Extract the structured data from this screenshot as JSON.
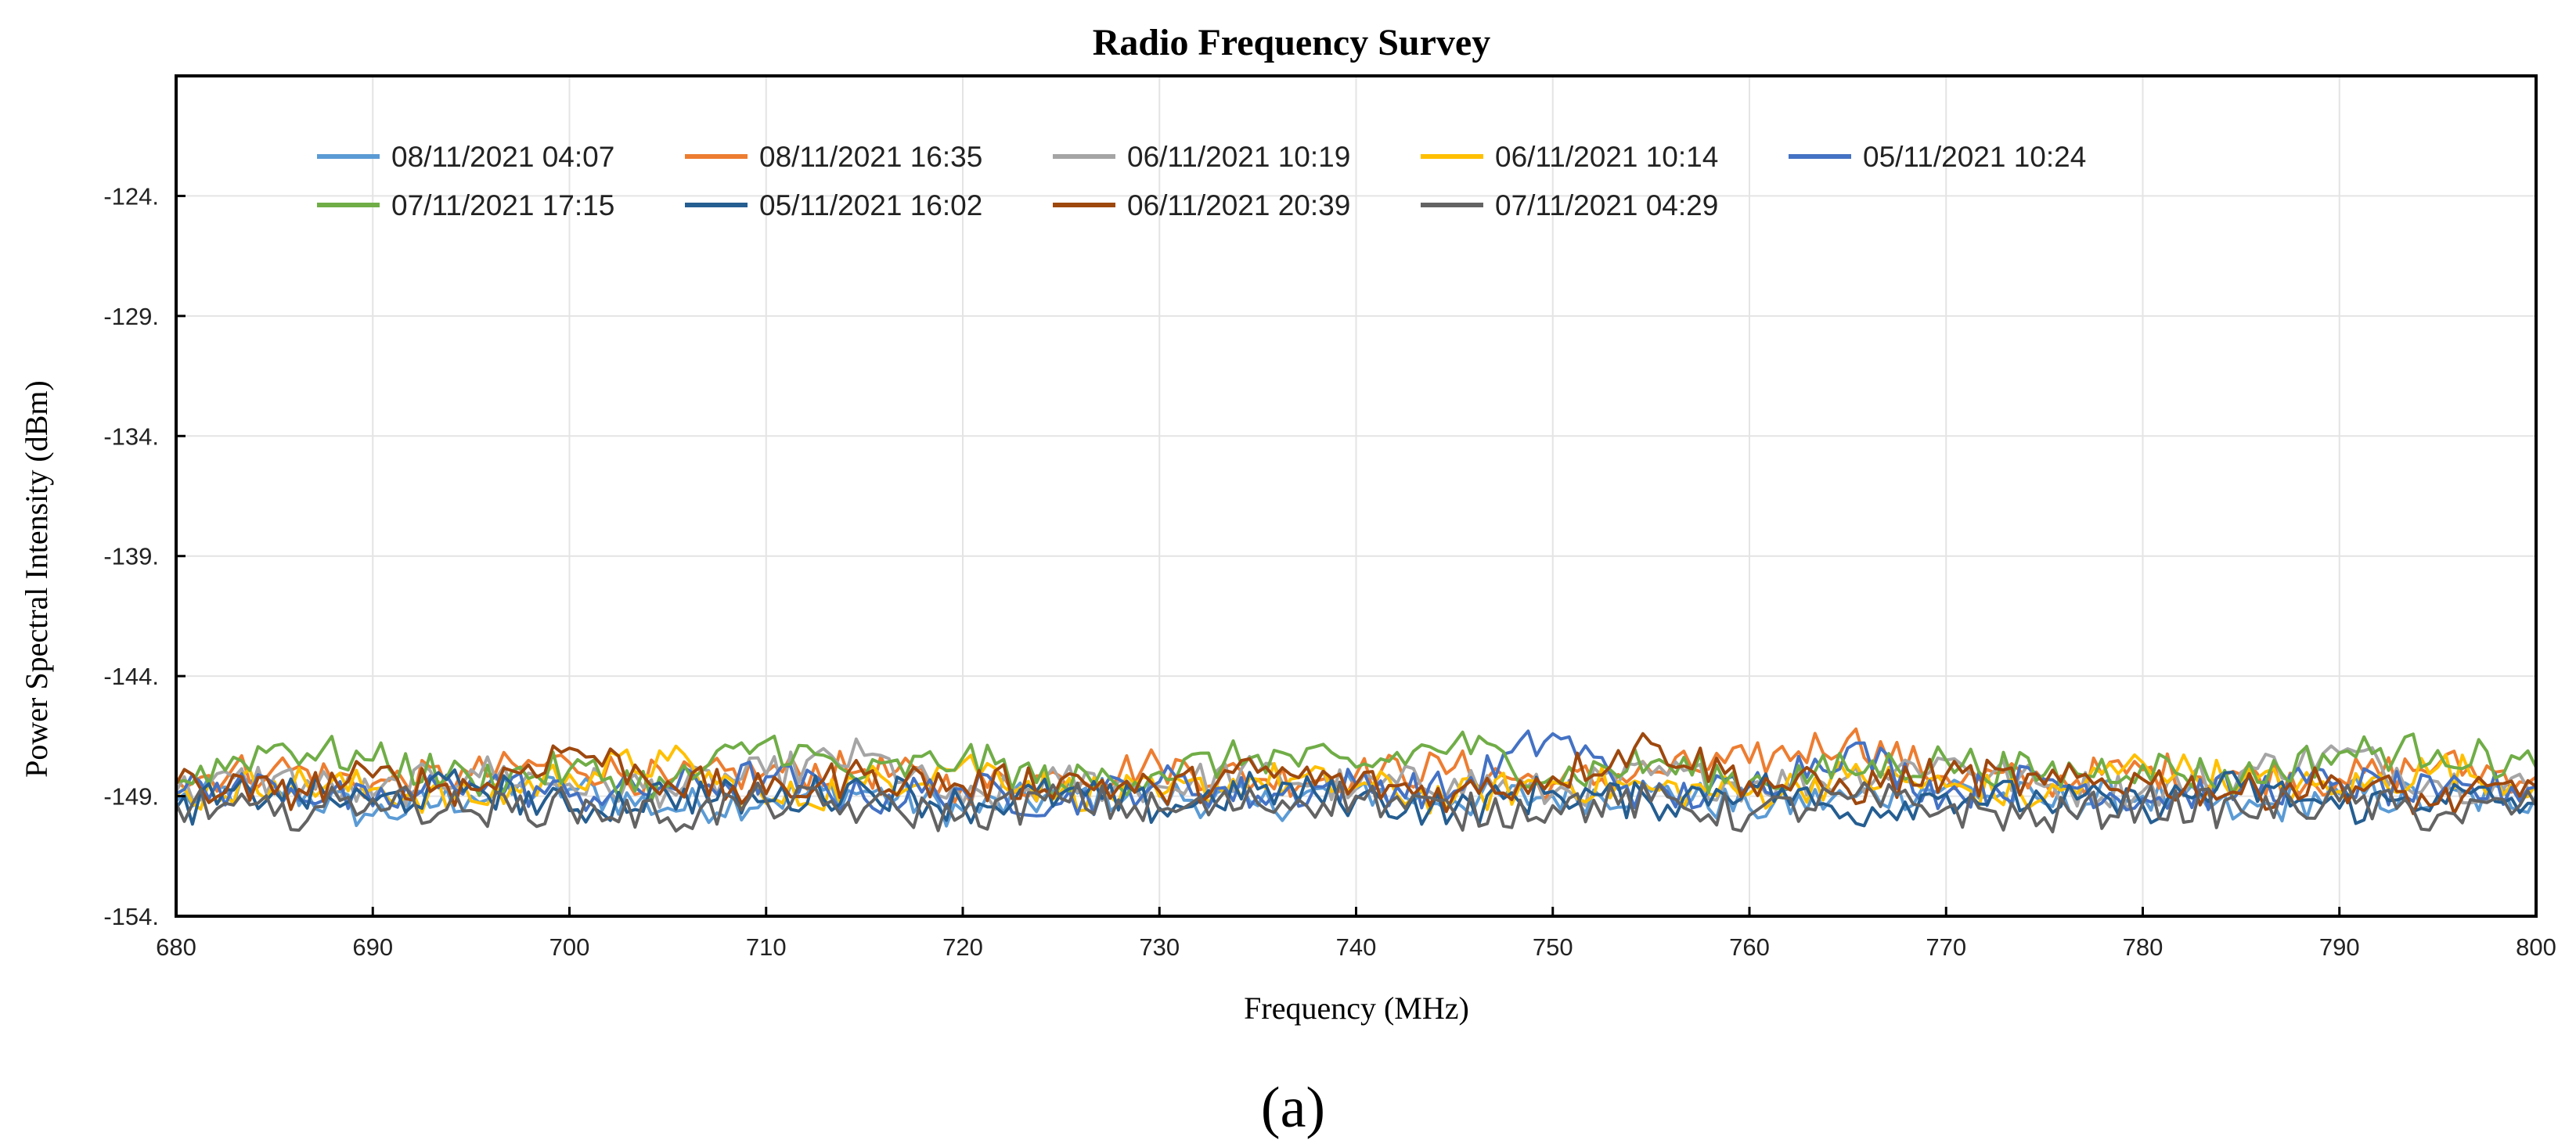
{
  "panel_label": "(a)",
  "chart_data": {
    "type": "line",
    "title": "Radio Frequency Survey",
    "xlabel": "Frequency (MHz)",
    "ylabel": "Power Spectral Intensity (dBm)",
    "xlim": [
      680,
      800
    ],
    "ylim": [
      -154,
      -119
    ],
    "x_ticks": [
      680,
      690,
      700,
      710,
      720,
      730,
      740,
      750,
      760,
      770,
      780,
      790,
      800
    ],
    "x_tick_labels": [
      "680",
      "690",
      "700",
      "710",
      "720",
      "730",
      "740",
      "750",
      "760",
      "770",
      "780",
      "790",
      "800"
    ],
    "y_ticks": [
      -154,
      -149,
      -144,
      -139,
      -134,
      -129,
      -124
    ],
    "y_tick_labels": [
      "-154.",
      "-149.",
      "-144.",
      "-139.",
      "-134.",
      "-129.",
      "-124."
    ],
    "grid": true,
    "legend_position": "top",
    "x": [
      680,
      685,
      690,
      695,
      700,
      705,
      710,
      715,
      720,
      725,
      730,
      735,
      740,
      745,
      750,
      755,
      760,
      765,
      770,
      775,
      780,
      785,
      790,
      795,
      800
    ],
    "series": [
      {
        "name": "08/11/2021 04:07",
        "color": "#5B9BD5",
        "values": [
          -149.2,
          -148.6,
          -149.8,
          -149.0,
          -148.7,
          -149.5,
          -149.1,
          -148.8,
          -149.6,
          -149.0,
          -148.9,
          -149.4,
          -148.7,
          -149.2,
          -149.0,
          -148.8,
          -149.5,
          -149.1,
          -148.6,
          -149.3,
          -149.0,
          -149.7,
          -148.9,
          -149.2,
          -149.0
        ]
      },
      {
        "name": "08/11/2021 16:35",
        "color": "#ED7D31",
        "values": [
          -148.3,
          -147.8,
          -148.5,
          -148.1,
          -147.6,
          -148.4,
          -148.0,
          -147.9,
          -148.6,
          -148.2,
          -147.7,
          -148.3,
          -148.1,
          -147.8,
          -148.5,
          -148.0,
          -147.6,
          -146.6,
          -148.2,
          -148.4,
          -147.9,
          -148.1,
          -148.3,
          -147.7,
          -148.2
        ]
      },
      {
        "name": "06/11/2021 10:19",
        "color": "#A5A5A5",
        "values": [
          -148.8,
          -148.2,
          -149.0,
          -147.9,
          -148.5,
          -148.7,
          -148.1,
          -147.3,
          -149.3,
          -148.4,
          -148.6,
          -148.0,
          -148.7,
          -148.3,
          -148.9,
          -148.1,
          -148.5,
          -148.2,
          -147.5,
          -148.6,
          -148.8,
          -148.0,
          -147.2,
          -148.4,
          -148.7
        ]
      },
      {
        "name": "06/11/2021 10:14",
        "color": "#FFC000",
        "values": [
          -149.0,
          -148.4,
          -148.7,
          -149.2,
          -148.1,
          -147.5,
          -149.3,
          -148.5,
          -147.6,
          -148.8,
          -149.0,
          -148.3,
          -148.6,
          -149.1,
          -148.4,
          -148.7,
          -148.9,
          -148.2,
          -148.6,
          -149.1,
          -147.6,
          -148.4,
          -148.8,
          -147.8,
          -148.5
        ]
      },
      {
        "name": "05/11/2021 10:24",
        "color": "#4472C4",
        "values": [
          -148.9,
          -148.5,
          -149.4,
          -148.3,
          -149.0,
          -148.6,
          -148.2,
          -149.1,
          -148.7,
          -149.3,
          -148.4,
          -149.0,
          -148.5,
          -148.8,
          -146.4,
          -149.2,
          -148.6,
          -147.0,
          -148.9,
          -148.3,
          -149.1,
          -148.7,
          -148.4,
          -149.0,
          -148.6
        ]
      },
      {
        "name": "07/11/2021 17:15",
        "color": "#70AD47",
        "values": [
          -148.4,
          -146.9,
          -147.5,
          -148.3,
          -147.9,
          -148.6,
          -146.7,
          -148.2,
          -147.4,
          -148.5,
          -148.0,
          -147.3,
          -147.8,
          -146.8,
          -148.2,
          -147.6,
          -148.4,
          -147.9,
          -147.5,
          -148.1,
          -147.7,
          -148.3,
          -147.2,
          -147.1,
          -147.8
        ]
      },
      {
        "name": "05/11/2021 16:02",
        "color": "#255E91",
        "values": [
          -149.5,
          -148.8,
          -149.3,
          -148.5,
          -149.6,
          -148.9,
          -149.2,
          -148.6,
          -149.4,
          -148.9,
          -149.5,
          -148.7,
          -149.1,
          -149.6,
          -148.8,
          -149.3,
          -148.5,
          -149.7,
          -148.9,
          -149.2,
          -149.4,
          -148.6,
          -149.5,
          -149.0,
          -149.3
        ]
      },
      {
        "name": "06/11/2021 20:39",
        "color": "#9E480E",
        "values": [
          -148.5,
          -148.9,
          -148.2,
          -148.7,
          -147.0,
          -148.4,
          -148.9,
          -148.1,
          -148.6,
          -148.3,
          -148.8,
          -148.0,
          -148.5,
          -148.9,
          -148.2,
          -146.8,
          -148.4,
          -148.7,
          -148.1,
          -148.5,
          -148.3,
          -148.9,
          -148.4,
          -149.3,
          -148.6
        ]
      },
      {
        "name": "07/11/2021 04:29",
        "color": "#636363",
        "values": [
          -149.3,
          -149.8,
          -149.1,
          -149.6,
          -149.4,
          -149.9,
          -149.2,
          -149.5,
          -149.8,
          -149.1,
          -149.6,
          -149.3,
          -149.0,
          -149.7,
          -149.4,
          -149.2,
          -149.8,
          -149.1,
          -149.5,
          -149.9,
          -149.3,
          -149.6,
          -149.2,
          -149.8,
          -149.4
        ]
      }
    ]
  }
}
